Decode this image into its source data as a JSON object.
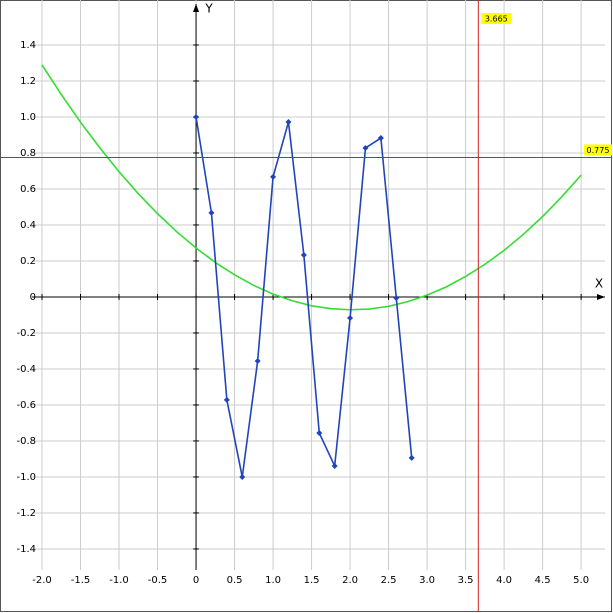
{
  "chart_data": {
    "type": "line",
    "x_label": "X",
    "y_label": "Y",
    "xlim": [
      -2.13,
      5.31
    ],
    "ylim": [
      -1.517,
      1.65
    ],
    "xticks": [
      {
        "value": -2,
        "label": "-2.0"
      },
      -1.5,
      {
        "value": -1,
        "label": "-1.0"
      },
      -0.5,
      0,
      0.5,
      {
        "value": 1,
        "label": "1.0"
      },
      1.5,
      {
        "value": 2,
        "label": "2.0"
      },
      2.5,
      {
        "value": 3,
        "label": "3.0"
      },
      3.5,
      {
        "value": 4,
        "label": "4.0"
      },
      4.5,
      {
        "value": 5,
        "label": "5.0"
      }
    ],
    "yticks": [
      -1.4,
      -1.2,
      {
        "value": -1,
        "label": "-1.0"
      },
      -0.8,
      -0.6,
      -0.4,
      -0.2,
      0,
      0.2,
      0.4,
      0.6,
      0.8,
      {
        "value": 1,
        "label": "1.0"
      },
      1.2,
      1.4
    ],
    "grid": true,
    "series": [
      {
        "color": "#33dd33",
        "markers": false,
        "x": [
          -2,
          -1.75,
          -1.5,
          -1.25,
          -1,
          -0.75,
          -0.5,
          -0.25,
          0,
          0.25,
          0.5,
          0.75,
          1,
          1.25,
          1.5,
          1.75,
          2,
          2.25,
          2.5,
          2.75,
          3,
          3.25,
          3.5,
          3.75,
          4,
          4.25,
          4.5,
          4.75,
          5
        ],
        "values": [
          1.289,
          1.125,
          0.971,
          0.829,
          0.696,
          0.574,
          0.463,
          0.362,
          0.272,
          0.192,
          0.123,
          0.064,
          0.016,
          -0.021,
          -0.049,
          -0.065,
          -0.071,
          -0.067,
          -0.052,
          -0.026,
          0.01,
          0.056,
          0.114,
          0.181,
          0.259,
          0.348,
          0.447,
          0.557,
          0.677
        ]
      },
      {
        "color": "#2244bb",
        "markers": true,
        "x": [
          0,
          0.2,
          0.4,
          0.6,
          0.8,
          1,
          1.2,
          1.4,
          1.6,
          1.8,
          2,
          2.2,
          2.4,
          2.6,
          2.8
        ],
        "values": [
          1,
          0.467,
          -0.572,
          -1,
          -0.356,
          0.667,
          0.972,
          0.233,
          -0.756,
          -0.939,
          -0.117,
          0.828,
          0.883,
          -0.006,
          -0.894
        ]
      }
    ],
    "crosshair": {
      "x": 3.665,
      "y": 0.775,
      "color": "#cc2222"
    }
  }
}
